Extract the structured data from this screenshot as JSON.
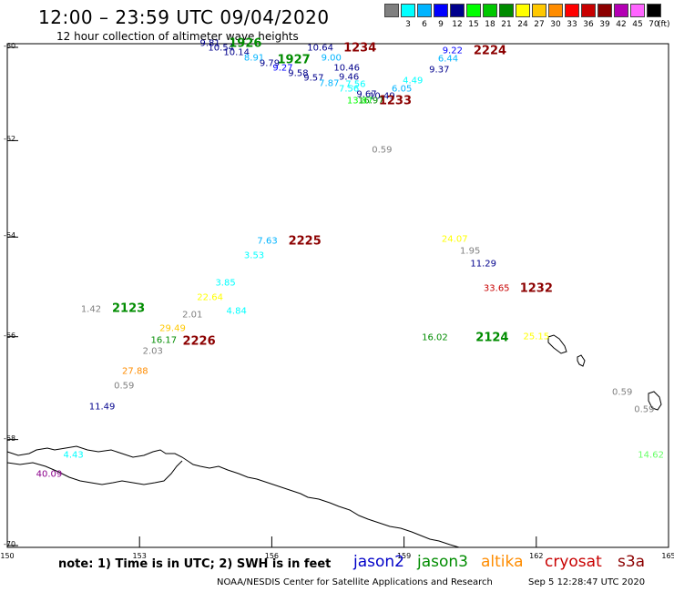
{
  "header": {
    "title": "12:00 – 23:59 UTC 09/04/2020",
    "subtitle": "12 hour collection of altimeter wave heights"
  },
  "colorbar": {
    "unit": "(ft)",
    "bins": [
      {
        "label": "",
        "color": "#808080"
      },
      {
        "label": "3",
        "color": "#00ffff"
      },
      {
        "label": "6",
        "color": "#00b4ff"
      },
      {
        "label": "9",
        "color": "#0000ff"
      },
      {
        "label": "12",
        "color": "#00008c"
      },
      {
        "label": "15",
        "color": "#00ff00"
      },
      {
        "label": "18",
        "color": "#00c800"
      },
      {
        "label": "21",
        "color": "#008c00"
      },
      {
        "label": "24",
        "color": "#ffff00"
      },
      {
        "label": "27",
        "color": "#ffc800"
      },
      {
        "label": "30",
        "color": "#ff8c00"
      },
      {
        "label": "33",
        "color": "#ff0000"
      },
      {
        "label": "36",
        "color": "#c80000"
      },
      {
        "label": "39",
        "color": "#8c0000"
      },
      {
        "label": "42",
        "color": "#b400b4"
      },
      {
        "label": "45",
        "color": "#ff64ff"
      },
      {
        "label": "70",
        "color": "#000000"
      }
    ]
  },
  "axes": {
    "lat_labels": [
      "-60",
      "-62",
      "-64",
      "-66",
      "-68",
      "-70"
    ],
    "lon_labels": [
      "150",
      "153",
      "156",
      "159",
      "162",
      "165"
    ]
  },
  "observations": [
    {
      "v": "9.81",
      "lon": 154.6,
      "lat": -59.93,
      "c": "#00008c"
    },
    {
      "v": "10.54",
      "lon": 154.85,
      "lat": -60.02,
      "c": "#00008c"
    },
    {
      "v": "10.14",
      "lon": 155.2,
      "lat": -60.12,
      "c": "#00008c"
    },
    {
      "v": "8.91",
      "lon": 155.6,
      "lat": -60.24,
      "c": "#00b4ff"
    },
    {
      "v": "9.79",
      "lon": 155.95,
      "lat": -60.35,
      "c": "#00008c"
    },
    {
      "v": "9.27",
      "lon": 156.25,
      "lat": -60.46,
      "c": "#0000ff"
    },
    {
      "v": "9.58",
      "lon": 156.6,
      "lat": -60.58,
      "c": "#00008c"
    },
    {
      "v": "9.57",
      "lon": 156.95,
      "lat": -60.68,
      "c": "#00008c"
    },
    {
      "v": "7.87",
      "lon": 157.3,
      "lat": -60.78,
      "c": "#00b4ff"
    },
    {
      "v": "10.64",
      "lon": 157.1,
      "lat": -60.02,
      "c": "#00008c"
    },
    {
      "v": "9.00",
      "lon": 157.35,
      "lat": -60.24,
      "c": "#00b4ff"
    },
    {
      "v": "10.46",
      "lon": 157.7,
      "lat": -60.45,
      "c": "#00008c"
    },
    {
      "v": "9.46",
      "lon": 157.75,
      "lat": -60.65,
      "c": "#00008c"
    },
    {
      "v": "7.56",
      "lon": 157.9,
      "lat": -60.8,
      "c": "#00ffff"
    },
    {
      "v": "7.56",
      "lon": 157.75,
      "lat": -60.9,
      "c": "#00ffff"
    },
    {
      "v": "9.67",
      "lon": 158.15,
      "lat": -61.02,
      "c": "#00008c"
    },
    {
      "v": "10.49",
      "lon": 158.5,
      "lat": -61.06,
      "c": "#00008c"
    },
    {
      "v": "16.97",
      "lon": 158.25,
      "lat": -61.16,
      "c": "#008c00"
    },
    {
      "v": "13.87",
      "lon": 158.0,
      "lat": -61.16,
      "c": "#00ff00"
    },
    {
      "v": "6.05",
      "lon": 158.95,
      "lat": -60.9,
      "c": "#00b4ff"
    },
    {
      "v": "4.49",
      "lon": 159.2,
      "lat": -60.74,
      "c": "#00ffff"
    },
    {
      "v": "9.37",
      "lon": 159.8,
      "lat": -60.5,
      "c": "#00008c"
    },
    {
      "v": "6.44",
      "lon": 160.0,
      "lat": -60.26,
      "c": "#00b4ff"
    },
    {
      "v": "9.22",
      "lon": 160.1,
      "lat": -60.07,
      "c": "#0000ff"
    },
    {
      "v": "0.59",
      "lon": 158.5,
      "lat": -62.2,
      "c": "#808080"
    },
    {
      "v": "7.63",
      "lon": 155.9,
      "lat": -64.08,
      "c": "#00b4ff"
    },
    {
      "v": "3.53",
      "lon": 155.6,
      "lat": -64.38,
      "c": "#00ffff"
    },
    {
      "v": "3.85",
      "lon": 154.95,
      "lat": -64.93,
      "c": "#00ffff"
    },
    {
      "v": "22.64",
      "lon": 154.6,
      "lat": -65.22,
      "c": "#ffff00"
    },
    {
      "v": "4.84",
      "lon": 155.2,
      "lat": -65.5,
      "c": "#00ffff"
    },
    {
      "v": "2.01",
      "lon": 154.2,
      "lat": -65.58,
      "c": "#808080"
    },
    {
      "v": "29.49",
      "lon": 153.75,
      "lat": -65.85,
      "c": "#ffc800"
    },
    {
      "v": "16.17",
      "lon": 153.55,
      "lat": -66.08,
      "c": "#008c00"
    },
    {
      "v": "2.03",
      "lon": 153.3,
      "lat": -66.3,
      "c": "#808080"
    },
    {
      "v": "27.88",
      "lon": 152.9,
      "lat": -66.68,
      "c": "#ff8c00"
    },
    {
      "v": "0.59",
      "lon": 152.65,
      "lat": -66.97,
      "c": "#808080"
    },
    {
      "v": "11.49",
      "lon": 152.15,
      "lat": -67.37,
      "c": "#00008c"
    },
    {
      "v": "4.43",
      "lon": 151.5,
      "lat": -68.3,
      "c": "#00ffff"
    },
    {
      "v": "40.09",
      "lon": 150.95,
      "lat": -68.67,
      "c": "#8c008c"
    },
    {
      "v": "1.42",
      "lon": 151.9,
      "lat": -65.46,
      "c": "#808080"
    },
    {
      "v": "24.07",
      "lon": 160.15,
      "lat": -64.05,
      "c": "#ffff00"
    },
    {
      "v": "1.95",
      "lon": 160.5,
      "lat": -64.3,
      "c": "#808080"
    },
    {
      "v": "11.29",
      "lon": 160.8,
      "lat": -64.55,
      "c": "#00008c"
    },
    {
      "v": "33.65",
      "lon": 161.1,
      "lat": -65.05,
      "c": "#c80000"
    },
    {
      "v": "16.02",
      "lon": 159.7,
      "lat": -66.02,
      "c": "#008c00"
    },
    {
      "v": "25.15",
      "lon": 162.0,
      "lat": -66.0,
      "c": "#ffff00"
    },
    {
      "v": "0.59",
      "lon": 163.95,
      "lat": -67.1,
      "c": "#808080"
    },
    {
      "v": "0.59",
      "lon": 164.45,
      "lat": -67.43,
      "c": "#808080"
    },
    {
      "v": "14.62",
      "lon": 164.6,
      "lat": -68.3,
      "c": "#66ff66"
    }
  ],
  "passes": [
    {
      "t": "1926",
      "lon": 155.4,
      "lat": -59.92,
      "c": "#008c00"
    },
    {
      "t": "1927",
      "lon": 156.5,
      "lat": -60.28,
      "c": "#008c00"
    },
    {
      "t": "1234",
      "lon": 158.0,
      "lat": -60.02,
      "c": "#8c0000"
    },
    {
      "t": "2224",
      "lon": 160.95,
      "lat": -60.07,
      "c": "#8c0000"
    },
    {
      "t": "1233",
      "lon": 158.8,
      "lat": -61.16,
      "c": "#8c0000"
    },
    {
      "t": "2225",
      "lon": 156.75,
      "lat": -64.08,
      "c": "#8c0000"
    },
    {
      "t": "2123",
      "lon": 152.75,
      "lat": -65.45,
      "c": "#008c00"
    },
    {
      "t": "2226",
      "lon": 154.35,
      "lat": -66.1,
      "c": "#8c0000"
    },
    {
      "t": "2124",
      "lon": 161.0,
      "lat": -66.02,
      "c": "#008c00"
    },
    {
      "t": "1232",
      "lon": 162.0,
      "lat": -65.05,
      "c": "#8c0000"
    }
  ],
  "footer": {
    "note": "note:  1) Time is in UTC;  2) SWH is in feet",
    "satellites": [
      {
        "name": "jason2",
        "color": "#0000c8"
      },
      {
        "name": "jason3",
        "color": "#008c00"
      },
      {
        "name": "altika",
        "color": "#ff8c00"
      },
      {
        "name": "cryosat",
        "color": "#c80000"
      },
      {
        "name": "s3a",
        "color": "#8c0000"
      }
    ],
    "credit": "NOAA/NESDIS Center for Satellite Applications and Research",
    "timestamp": "Sep  5 12:28:47 UTC 2020"
  }
}
